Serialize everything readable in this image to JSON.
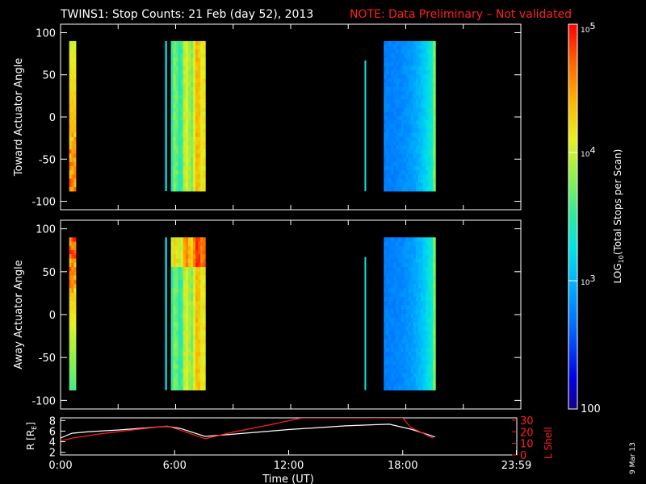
{
  "title": {
    "main": "TWINS1: Stop Counts: 21 Feb (day  52), 2013",
    "note": "NOTE: Data Preliminary – Not validated",
    "note_color": "#ff2020"
  },
  "date_stamp": "9 Mar 13",
  "chart_data": [
    {
      "type": "heatmap",
      "ylabel": "Toward Actuator Angle",
      "ylim": [
        -110,
        110
      ],
      "yticks": [
        100,
        50,
        0,
        -50,
        -100
      ],
      "xlim": [
        0,
        24
      ],
      "angle_range": [
        -88,
        90
      ],
      "blocks": [
        {
          "t0": 0.45,
          "t1": 0.8,
          "level": 4.3,
          "profile": "toward-dawn"
        },
        {
          "t0": 5.45,
          "t1": 5.55,
          "level": 3.2,
          "profile": "flat",
          "ylim_top": 90
        },
        {
          "t0": 5.75,
          "t1": 7.55,
          "level": 3.7,
          "profile": "dayside"
        },
        {
          "t0": 15.85,
          "t1": 15.93,
          "level": 3.3,
          "profile": "flat",
          "ylim_top": 67
        },
        {
          "t0": 16.85,
          "t1": 19.55,
          "level": 3.0,
          "profile": "night"
        }
      ]
    },
    {
      "type": "heatmap",
      "ylabel": "Away Actuator Angle",
      "ylim": [
        -110,
        110
      ],
      "yticks": [
        100,
        50,
        0,
        -50,
        -100
      ],
      "xlim": [
        0,
        24
      ],
      "angle_range": [
        -88,
        90
      ],
      "blocks": [
        {
          "t0": 0.45,
          "t1": 0.8,
          "level": 4.3,
          "profile": "away-dawn"
        },
        {
          "t0": 5.45,
          "t1": 5.55,
          "level": 3.2,
          "profile": "flat",
          "ylim_top": 90
        },
        {
          "t0": 5.75,
          "t1": 7.55,
          "level": 4.0,
          "profile": "dayside"
        },
        {
          "t0": 15.85,
          "t1": 15.93,
          "level": 3.3,
          "profile": "flat",
          "ylim_top": 67
        },
        {
          "t0": 16.85,
          "t1": 19.55,
          "level": 3.1,
          "profile": "night"
        }
      ]
    },
    {
      "type": "line",
      "ylabel_left": "R [R",
      "ylabel_left_sub": "E",
      "ylabel_left_close": "]",
      "ylabel_right": "L Shell",
      "xlabel": "Time (UT)",
      "xticks": [
        "0:00",
        "6:00",
        "12:00",
        "18:00",
        "23:59"
      ],
      "xtick_hours": [
        0,
        6,
        12,
        18,
        23.98
      ],
      "xlim": [
        0,
        24
      ],
      "yticks_left": [
        "8",
        "6",
        "4",
        "2"
      ],
      "ylim_left": [
        1.5,
        8.5
      ],
      "yticks_right": [
        "30",
        "20",
        "10",
        "0"
      ],
      "ylim_right": [
        0,
        32
      ],
      "series": [
        {
          "color": "#ffffff",
          "axis": "left",
          "x": [
            0,
            0.6,
            1.5,
            3,
            5.6,
            6.3,
            7.6,
            9,
            12,
            15,
            16.5,
            17.3,
            18.5,
            19.7
          ],
          "y": [
            4.7,
            5.6,
            5.9,
            6.2,
            6.9,
            6.5,
            5.0,
            5.4,
            6.3,
            7.0,
            7.2,
            7.3,
            6.3,
            4.9
          ]
        },
        {
          "color": "#ff2020",
          "axis": "right",
          "x": [
            0,
            0.6,
            2,
            4,
            5.6,
            6.2,
            7.6,
            9,
            11,
            12.7,
            18.0,
            18.4,
            19.6
          ],
          "y": [
            12,
            14.5,
            18,
            22,
            25,
            22,
            14,
            19.5,
            26,
            32,
            32,
            24,
            14.5
          ]
        }
      ]
    }
  ],
  "colorbar": {
    "label_pre": "LOG",
    "label_sub": "10",
    "label_post": "(Total Stops per Scan)",
    "ticks": [
      {
        "base": "10",
        "exp": "5"
      },
      {
        "base": "10",
        "exp": "4"
      },
      {
        "base": "10",
        "exp": "3"
      },
      {
        "base": "100",
        "exp": ""
      }
    ],
    "range": [
      2,
      5
    ]
  }
}
